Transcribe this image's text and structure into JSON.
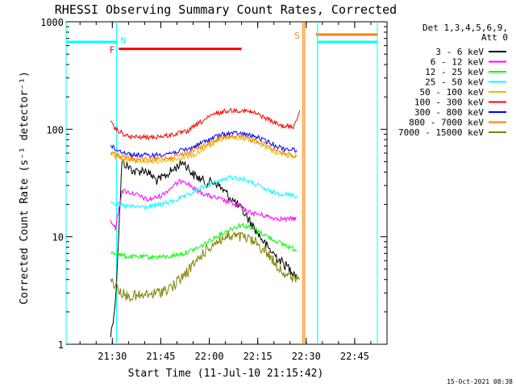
{
  "chart_data": {
    "type": "line",
    "title": "RHESSI Observing Summary Count Rates, Corrected",
    "xlabel": "Start Time (11-Jul-10 21:15:42)",
    "ylabel": "Corrected Count Rate (s⁻¹ detector⁻¹)",
    "y_scale": "log",
    "ylim": [
      1,
      1000
    ],
    "y_ticks": [
      {
        "value": 1,
        "label": "1"
      },
      {
        "value": 10,
        "label": "10"
      },
      {
        "value": 100,
        "label": "100"
      },
      {
        "value": 1000,
        "label": "1000"
      }
    ],
    "xlim": [
      "21:15:42",
      "22:55:00"
    ],
    "x_ticks": [
      {
        "value": "21:30",
        "label": "21:30"
      },
      {
        "value": "21:45",
        "label": "21:45"
      },
      {
        "value": "22:00",
        "label": "22:00"
      },
      {
        "value": "22:15",
        "label": "22:15"
      },
      {
        "value": "22:30",
        "label": "22:30"
      },
      {
        "value": "22:45",
        "label": "22:45"
      }
    ],
    "legend": {
      "placement": "right",
      "header": [
        "Det 1,3,4,5,6,9,",
        "Att 0"
      ]
    },
    "series": [
      {
        "name": "3 - 6 keV",
        "color": "#000000",
        "points": [
          [
            "21:29:30",
            1.2
          ],
          [
            "21:31:00",
            2.5
          ],
          [
            "21:33:00",
            50
          ],
          [
            "21:37:00",
            40
          ],
          [
            "21:40:00",
            42
          ],
          [
            "21:44:00",
            33
          ],
          [
            "21:47:00",
            38
          ],
          [
            "21:50:00",
            45
          ],
          [
            "21:52:00",
            50
          ],
          [
            "21:55:00",
            38
          ],
          [
            "21:59:00",
            32
          ],
          [
            "22:02:00",
            32
          ],
          [
            "22:06:00",
            24
          ],
          [
            "22:10:00",
            18
          ],
          [
            "22:14:00",
            12
          ],
          [
            "22:18:00",
            8
          ],
          [
            "22:22:00",
            6
          ],
          [
            "22:25:00",
            5
          ],
          [
            "22:27:00",
            4.5
          ]
        ]
      },
      {
        "name": "6 - 12 keV",
        "color": "#ff00ff",
        "points": [
          [
            "21:29:30",
            14
          ],
          [
            "21:31:00",
            12
          ],
          [
            "21:33:00",
            27
          ],
          [
            "21:37:00",
            25
          ],
          [
            "21:41:00",
            22
          ],
          [
            "21:45:00",
            24
          ],
          [
            "21:49:00",
            30
          ],
          [
            "21:52:00",
            34
          ],
          [
            "21:56:00",
            27
          ],
          [
            "22:00:00",
            24
          ],
          [
            "22:04:00",
            22
          ],
          [
            "22:08:00",
            20
          ],
          [
            "22:12:00",
            17
          ],
          [
            "22:16:00",
            16
          ],
          [
            "22:20:00",
            15
          ],
          [
            "22:24:00",
            14.5
          ],
          [
            "22:27:00",
            15
          ]
        ]
      },
      {
        "name": "12 - 25 keV",
        "color": "#00ff00",
        "points": [
          [
            "21:29:30",
            7
          ],
          [
            "21:31:00",
            7
          ],
          [
            "21:35:00",
            6.5
          ],
          [
            "21:41:00",
            6.5
          ],
          [
            "21:47:00",
            6.5
          ],
          [
            "21:52:00",
            7
          ],
          [
            "21:57:00",
            8
          ],
          [
            "22:02:00",
            10
          ],
          [
            "22:07:00",
            12
          ],
          [
            "22:10:00",
            13
          ],
          [
            "22:13:00",
            12
          ],
          [
            "22:17:00",
            10.5
          ],
          [
            "22:21:00",
            9
          ],
          [
            "22:25:00",
            8
          ],
          [
            "22:27:00",
            7.5
          ]
        ]
      },
      {
        "name": "25 - 50 keV",
        "color": "#00ffff",
        "points": [
          [
            "21:29:30",
            22
          ],
          [
            "21:31:00",
            20
          ],
          [
            "21:36:00",
            19
          ],
          [
            "21:42:00",
            19
          ],
          [
            "21:48:00",
            21
          ],
          [
            "21:53:00",
            24
          ],
          [
            "21:58:00",
            29
          ],
          [
            "22:03:00",
            33
          ],
          [
            "22:07:00",
            36
          ],
          [
            "22:11:00",
            34
          ],
          [
            "22:15:00",
            30
          ],
          [
            "22:19:00",
            26
          ],
          [
            "22:23:00",
            25
          ],
          [
            "22:27:00",
            24
          ]
        ]
      },
      {
        "name": "50 - 100 keV",
        "color": "#e0c000",
        "points": [
          [
            "21:29:30",
            60
          ],
          [
            "21:31:00",
            55
          ],
          [
            "21:37:00",
            50
          ],
          [
            "21:43:00",
            50
          ],
          [
            "21:49:00",
            52
          ],
          [
            "21:55:00",
            57
          ],
          [
            "22:00:00",
            70
          ],
          [
            "22:04:00",
            82
          ],
          [
            "22:08:00",
            85
          ],
          [
            "22:12:00",
            80
          ],
          [
            "22:16:00",
            72
          ],
          [
            "22:20:00",
            62
          ],
          [
            "22:24:00",
            57
          ],
          [
            "22:27:00",
            56
          ]
        ]
      },
      {
        "name": "100 - 300 keV",
        "color": "#ff0000",
        "points": [
          [
            "21:29:30",
            115
          ],
          [
            "21:31:00",
            100
          ],
          [
            "21:35:00",
            85
          ],
          [
            "21:41:00",
            84
          ],
          [
            "21:47:00",
            87
          ],
          [
            "21:53:00",
            95
          ],
          [
            "21:58:00",
            120
          ],
          [
            "22:02:00",
            140
          ],
          [
            "22:06:00",
            150
          ],
          [
            "22:10:00",
            150
          ],
          [
            "22:14:00",
            142
          ],
          [
            "22:18:00",
            125
          ],
          [
            "22:22:00",
            108
          ],
          [
            "22:26:00",
            105
          ],
          [
            "22:28:00",
            150
          ]
        ]
      },
      {
        "name": "300 - 800 keV",
        "color": "#0000ff",
        "points": [
          [
            "21:29:30",
            70
          ],
          [
            "21:31:00",
            65
          ],
          [
            "21:36:00",
            58
          ],
          [
            "21:42:00",
            57
          ],
          [
            "21:48:00",
            60
          ],
          [
            "21:54:00",
            66
          ],
          [
            "21:59:00",
            78
          ],
          [
            "22:03:00",
            88
          ],
          [
            "22:07:00",
            92
          ],
          [
            "22:11:00",
            90
          ],
          [
            "22:15:00",
            84
          ],
          [
            "22:19:00",
            74
          ],
          [
            "22:23:00",
            66
          ],
          [
            "22:27:00",
            64
          ]
        ]
      },
      {
        "name": "800 - 7000 keV",
        "color": "#ff8000",
        "points": [
          [
            "21:29:30",
            62
          ],
          [
            "21:31:00",
            58
          ],
          [
            "21:36:00",
            53
          ],
          [
            "21:42:00",
            52
          ],
          [
            "21:48:00",
            55
          ],
          [
            "21:54:00",
            61
          ],
          [
            "21:59:00",
            72
          ],
          [
            "22:03:00",
            82
          ],
          [
            "22:07:00",
            86
          ],
          [
            "22:11:00",
            84
          ],
          [
            "22:15:00",
            78
          ],
          [
            "22:19:00",
            68
          ],
          [
            "22:23:00",
            60
          ],
          [
            "22:27:00",
            56
          ]
        ]
      },
      {
        "name": "7000 - 15000 keV",
        "color": "#808000",
        "points": [
          [
            "21:29:30",
            4
          ],
          [
            "21:31:00",
            3.5
          ],
          [
            "21:34:00",
            2.8
          ],
          [
            "21:39:00",
            2.8
          ],
          [
            "21:44:00",
            3
          ],
          [
            "21:49:00",
            3.5
          ],
          [
            "21:54:00",
            5
          ],
          [
            "21:58:00",
            7
          ],
          [
            "22:02:00",
            9
          ],
          [
            "22:06:00",
            10
          ],
          [
            "22:10:00",
            10
          ],
          [
            "22:14:00",
            9
          ],
          [
            "22:18:00",
            7
          ],
          [
            "22:22:00",
            5
          ],
          [
            "22:26:00",
            4
          ],
          [
            "22:28:00",
            4
          ]
        ]
      }
    ],
    "markers": [
      {
        "label": "N",
        "color": "#00ffff",
        "line_time": "21:31:20",
        "x_range": [
          "21:15:42",
          "21:31:20"
        ],
        "level": 650
      },
      {
        "label": "F",
        "color": "#ff0000",
        "line_time": null,
        "x_range": [
          "21:32:00",
          "22:10:00"
        ],
        "level": 560
      },
      {
        "label": "S",
        "color": "#ff8000",
        "line_time": "22:29:00",
        "x_range": [
          "22:33:00",
          "22:52:00"
        ],
        "level": 760
      },
      {
        "label": "",
        "color": "#00ffff",
        "line_time": "22:33:30",
        "x_range": [
          "22:33:30",
          "22:52:00"
        ],
        "level": 650
      }
    ],
    "night_intervals": [
      {
        "color": "#00ffff",
        "from": "21:15:42",
        "to": "21:31:20"
      },
      {
        "color": "#00ffff",
        "from": "22:33:30",
        "to": "22:52:00"
      },
      {
        "color": "#ff8000",
        "from": "22:29:00",
        "to": "22:29:30"
      }
    ]
  },
  "footer": {
    "timestamp": "15-Oct-2021 08:38"
  }
}
